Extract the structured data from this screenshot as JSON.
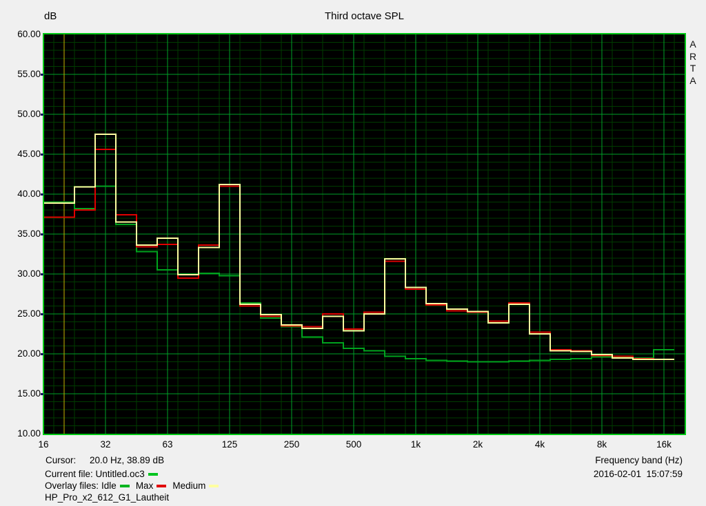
{
  "header": {
    "y_axis_unit": "dB",
    "title": "Third octave SPL"
  },
  "branding": {
    "name": "ARTA"
  },
  "plot": {
    "bg": "#000000",
    "frame_color": "#00c814",
    "grid_minor_color": "#003c00",
    "grid_major_color": "#00a028",
    "cursor_color": "#c9b400"
  },
  "y_axis": {
    "tick_labels": [
      "60.00",
      "55.00",
      "50.00",
      "45.00",
      "40.00",
      "35.00",
      "30.00",
      "25.00",
      "20.00",
      "15.00",
      "10.00"
    ]
  },
  "x_axis": {
    "octave_labels": [
      "16",
      "32",
      "63",
      "125",
      "250",
      "500",
      "1k",
      "2k",
      "4k",
      "8k",
      "16k"
    ],
    "label": "Frequency band (Hz)"
  },
  "cursor": {
    "label": "Cursor:",
    "value": "20.0 Hz, 38.89 dB",
    "band_index": 1
  },
  "files": {
    "current_label": "Current file: Untitled.oc3",
    "current_color": "#00c41e",
    "overlay_label": "Overlay files:",
    "overlays": [
      {
        "name": "Idle",
        "color": "#00b41e"
      },
      {
        "name": "Max",
        "color": "#e10000"
      },
      {
        "name": "Medium",
        "color": "#ffffa0"
      }
    ],
    "note": "HP_Pro_x2_612_G1_Lautheit"
  },
  "footer": {
    "datetime": "2016-02-01  15:07:59"
  },
  "chart_data": {
    "type": "step-line-third-octave",
    "title": "Third octave SPL",
    "xlabel": "Frequency band (Hz)",
    "ylabel": "dB",
    "ylim": [
      10,
      60
    ],
    "grid": true,
    "categories": [
      "16",
      "20",
      "25",
      "31.5",
      "40",
      "50",
      "63",
      "80",
      "100",
      "125",
      "160",
      "200",
      "250",
      "315",
      "400",
      "500",
      "630",
      "800",
      "1k",
      "1.25k",
      "1.6k",
      "2k",
      "2.5k",
      "3.15k",
      "4k",
      "5k",
      "6.3k",
      "8k",
      "10k",
      "12.5k",
      "16k"
    ],
    "cursor_point": {
      "frequency_hz": 20.0,
      "level_db": 38.89
    },
    "series": [
      {
        "name": "Idle",
        "color": "#00a41e",
        "values": [
          39.0,
          39.0,
          38.2,
          41.0,
          36.2,
          32.8,
          30.5,
          30.0,
          30.1,
          29.8,
          26.4,
          24.5,
          23.4,
          22.1,
          21.4,
          20.7,
          20.4,
          19.7,
          19.4,
          19.2,
          19.1,
          19.0,
          19.0,
          19.1,
          19.2,
          19.3,
          19.4,
          19.6,
          19.6,
          19.5,
          20.5
        ]
      },
      {
        "name": "Max",
        "color": "#e10000",
        "values": [
          37.1,
          37.1,
          38.0,
          45.6,
          37.4,
          33.4,
          33.7,
          29.5,
          33.6,
          41.0,
          26.0,
          24.7,
          23.5,
          23.4,
          25.0,
          23.1,
          25.2,
          31.6,
          28.1,
          26.1,
          25.4,
          25.2,
          24.1,
          26.4,
          22.7,
          20.5,
          20.4,
          19.8,
          19.7,
          19.4,
          19.3
        ]
      },
      {
        "name": "Medium",
        "color": "#ffffa0",
        "values": [
          38.9,
          38.9,
          40.9,
          47.5,
          36.5,
          33.6,
          34.5,
          29.9,
          33.3,
          41.2,
          26.2,
          24.9,
          23.6,
          23.2,
          24.7,
          22.9,
          25.0,
          31.9,
          28.3,
          26.3,
          25.6,
          25.3,
          23.9,
          26.2,
          22.5,
          20.4,
          20.3,
          19.9,
          19.5,
          19.3,
          19.3
        ]
      }
    ],
    "legend_position": "bottom-left"
  }
}
